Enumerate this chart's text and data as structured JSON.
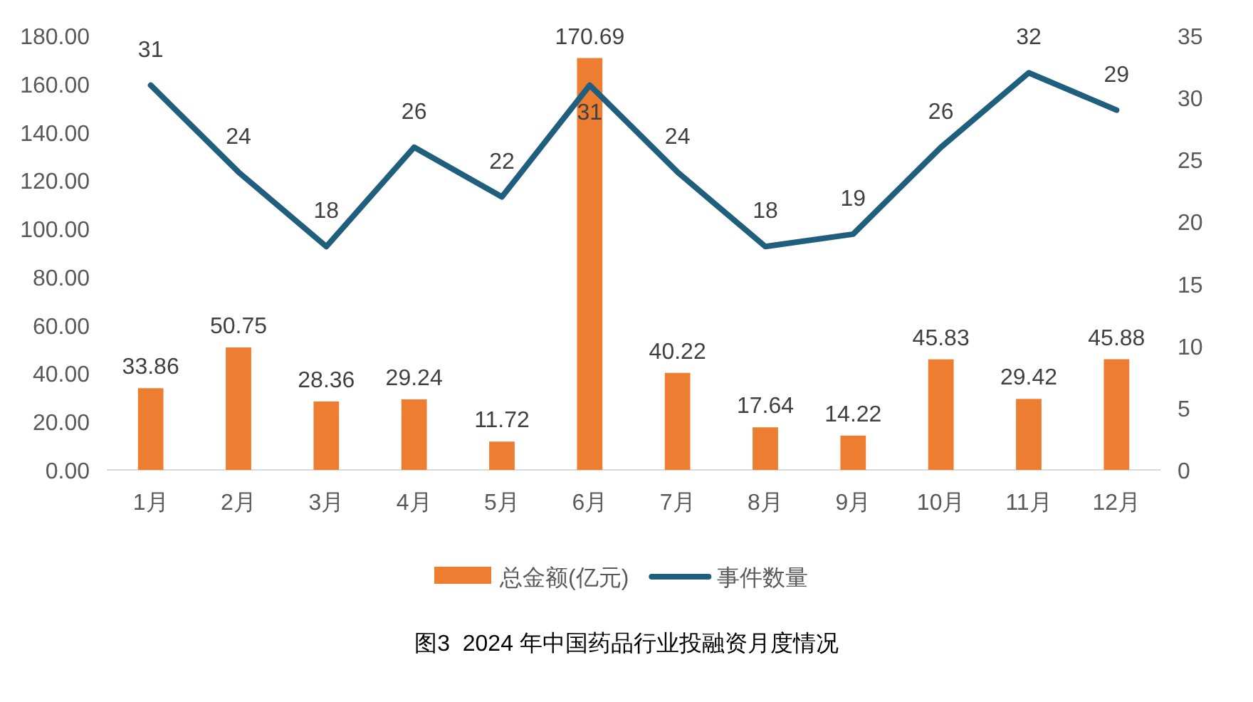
{
  "chart_data": {
    "type": "bar",
    "title": "图3  2024 年中国药品行业投融资月度情况",
    "categories": [
      "1月",
      "2月",
      "3月",
      "4月",
      "5月",
      "6月",
      "7月",
      "8月",
      "9月",
      "10月",
      "11月",
      "12月"
    ],
    "series": [
      {
        "name": "总金额(亿元)",
        "color": "#ed7d31",
        "values": [
          33.86,
          50.75,
          28.36,
          29.24,
          11.72,
          170.69,
          40.22,
          17.64,
          14.22,
          45.83,
          29.42,
          45.88
        ]
      },
      {
        "name": "事件数量",
        "type": "line",
        "axis": "y2",
        "color": "#1f5f7d",
        "values": [
          31,
          24,
          18,
          26,
          22,
          31,
          24,
          18,
          19,
          26,
          32,
          29
        ]
      }
    ],
    "ylim": [
      0,
      180
    ],
    "yticks": [
      {
        "value": 0,
        "label": "0.00"
      },
      {
        "value": 20,
        "label": "20.00"
      },
      {
        "value": 40,
        "label": "40.00"
      },
      {
        "value": 60,
        "label": "60.00"
      },
      {
        "value": 80,
        "label": "80.00"
      },
      {
        "value": 100,
        "label": "100.00"
      },
      {
        "value": 120,
        "label": "120.00"
      },
      {
        "value": 140,
        "label": "140.00"
      },
      {
        "value": 160,
        "label": "160.00"
      },
      {
        "value": 180,
        "label": "180.00"
      }
    ],
    "y2lim": [
      0,
      35
    ],
    "y2ticks": [
      0,
      5,
      10,
      15,
      20,
      25,
      30,
      35
    ],
    "data_labels": true,
    "legend": "bottom",
    "grid": false
  }
}
